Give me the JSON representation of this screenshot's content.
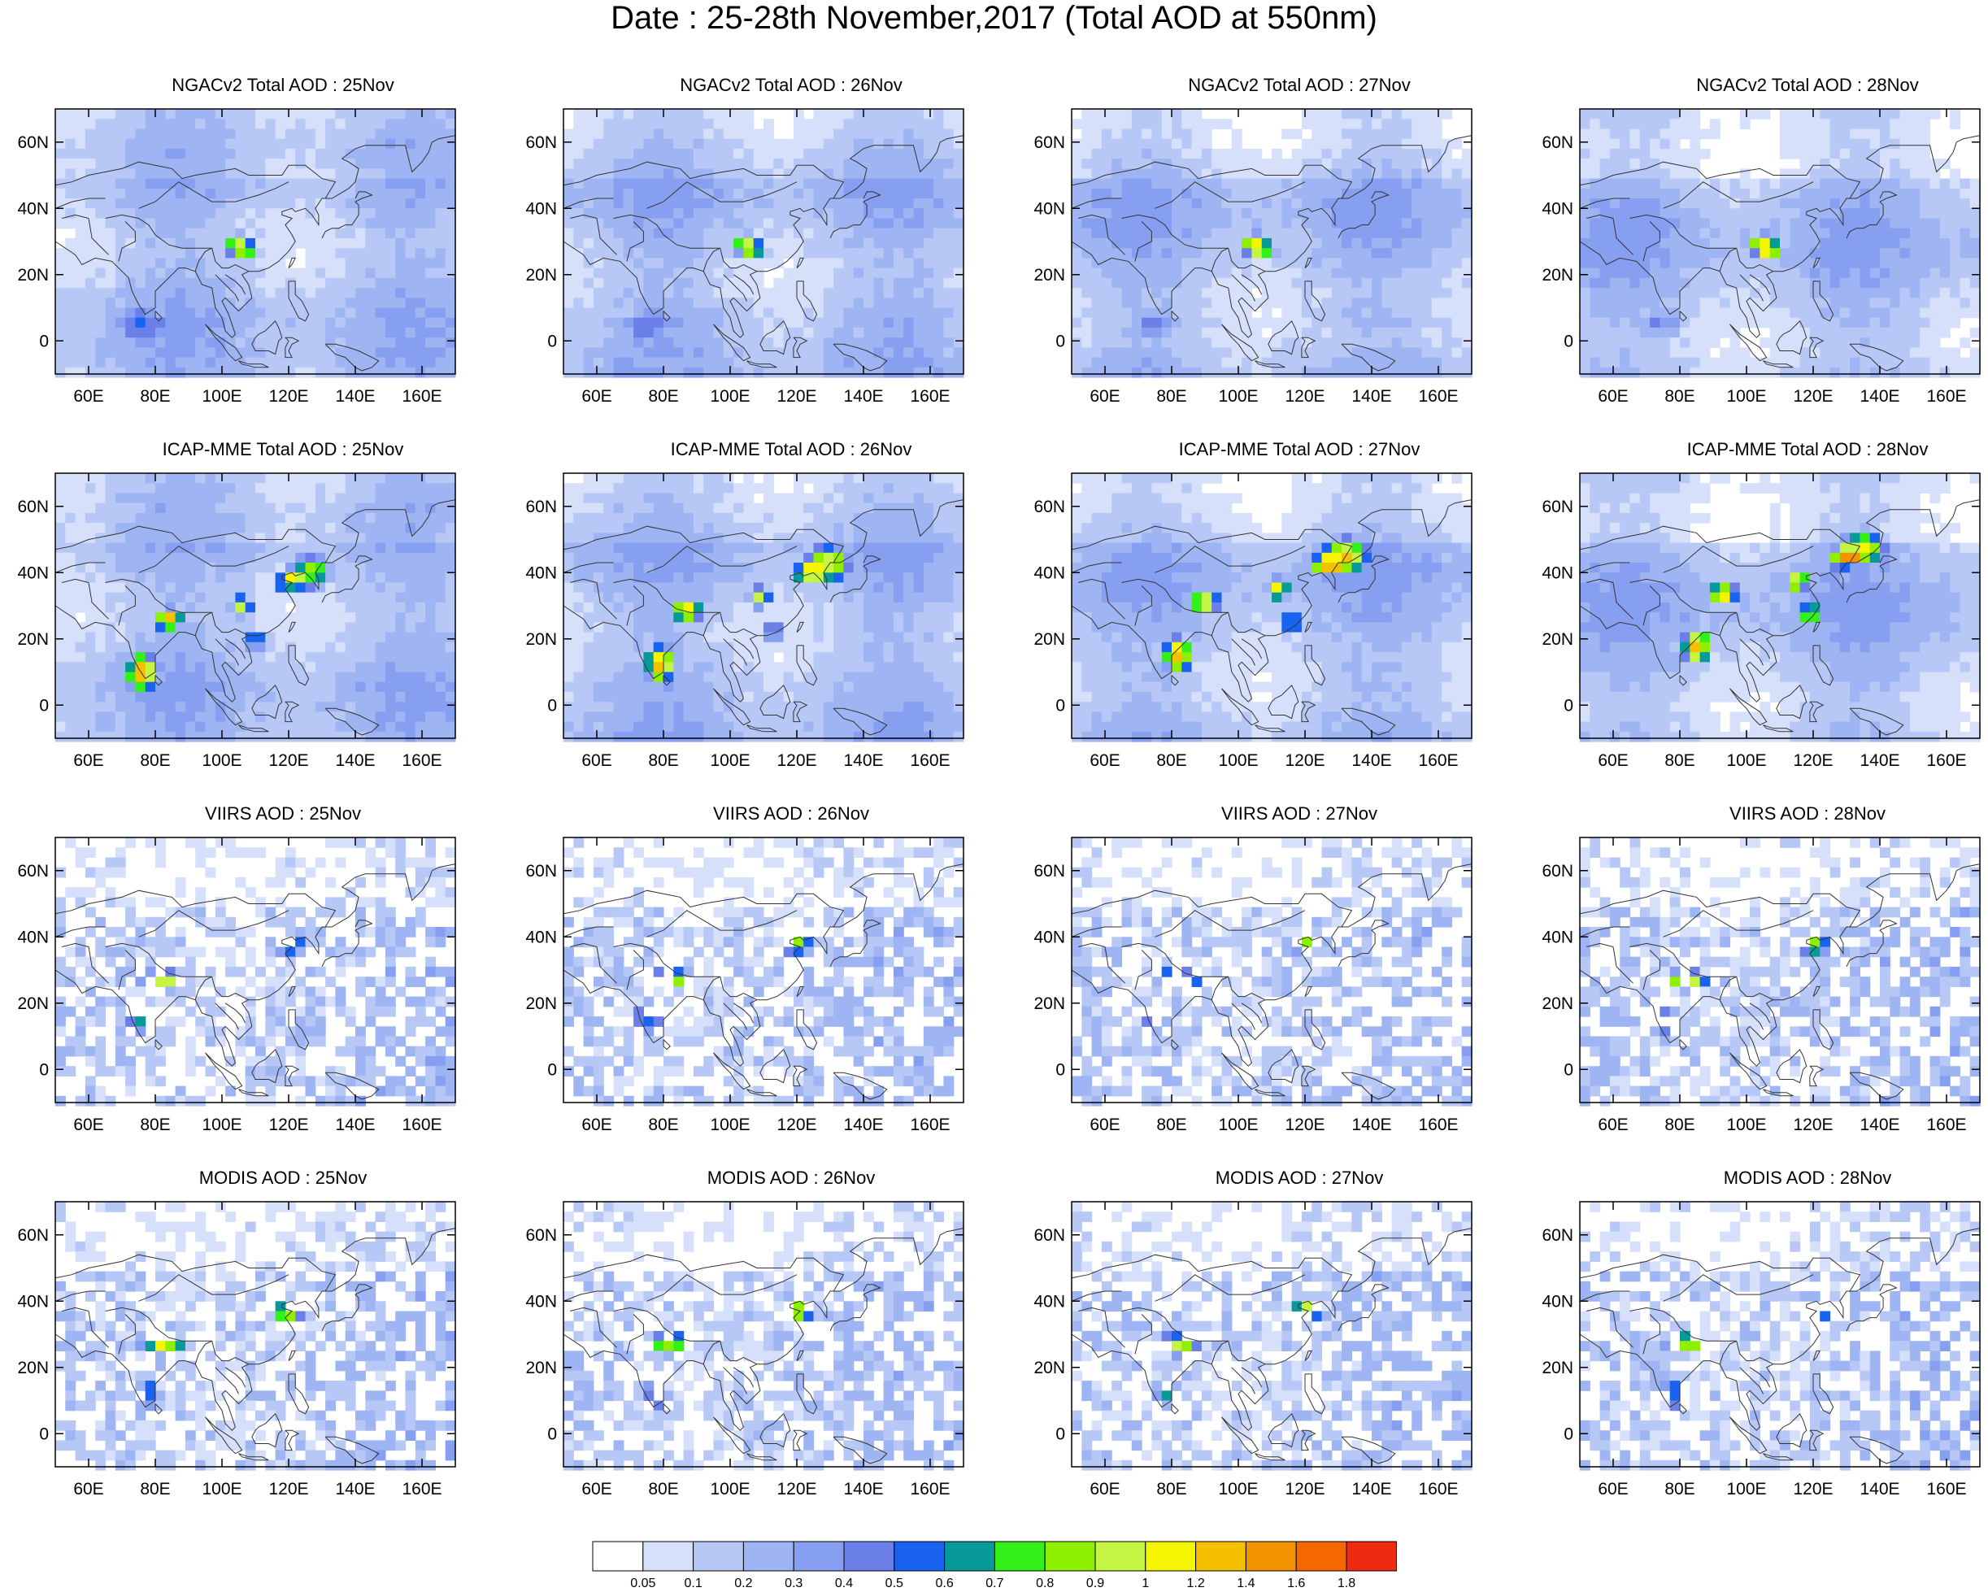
{
  "title": "Date : 25-28th November,2017 (Total AOD at 550nm)",
  "lat_labels": [
    "60N",
    "40N",
    "20N",
    "0"
  ],
  "lon_labels": [
    "60E",
    "80E",
    "100E",
    "120E",
    "140E",
    "160E"
  ],
  "panels": [
    {
      "title": "NGACv2 Total AOD : 25Nov",
      "product": "ngac"
    },
    {
      "title": "NGACv2 Total AOD : 26Nov",
      "product": "ngac"
    },
    {
      "title": "NGACv2 Total AOD : 27Nov",
      "product": "ngac"
    },
    {
      "title": "NGACv2 Total AOD : 28Nov",
      "product": "ngac"
    },
    {
      "title": "ICAP-MME Total AOD : 25Nov",
      "product": "icap"
    },
    {
      "title": "ICAP-MME Total AOD : 26Nov",
      "product": "icap"
    },
    {
      "title": "ICAP-MME Total AOD : 27Nov",
      "product": "icap"
    },
    {
      "title": "ICAP-MME Total AOD : 28Nov",
      "product": "icap"
    },
    {
      "title": "VIIRS AOD : 25Nov",
      "product": "viirs"
    },
    {
      "title": "VIIRS AOD : 26Nov",
      "product": "viirs"
    },
    {
      "title": "VIIRS AOD : 27Nov",
      "product": "viirs"
    },
    {
      "title": "VIIRS AOD : 28Nov",
      "product": "viirs"
    },
    {
      "title": "MODIS AOD : 25Nov",
      "product": "modis"
    },
    {
      "title": "MODIS AOD : 26Nov",
      "product": "modis"
    },
    {
      "title": "MODIS AOD : 27Nov",
      "product": "modis"
    },
    {
      "title": "MODIS AOD : 28Nov",
      "product": "modis"
    }
  ],
  "colorbar": {
    "labels": [
      "0.05",
      "0.1",
      "0.2",
      "0.3",
      "0.4",
      "0.5",
      "0.6",
      "0.7",
      "0.8",
      "0.9",
      "1",
      "1.2",
      "1.4",
      "1.6",
      "1.8"
    ],
    "colors": [
      "#ffffff",
      "#d6e0fb",
      "#b7c8f6",
      "#9fb5f3",
      "#879ff0",
      "#6b7fe8",
      "#1a62f0",
      "#089a98",
      "#34f01a",
      "#8ef000",
      "#c4f542",
      "#f5f500",
      "#f5c000",
      "#f59200",
      "#f56800",
      "#f02a10"
    ]
  }
}
